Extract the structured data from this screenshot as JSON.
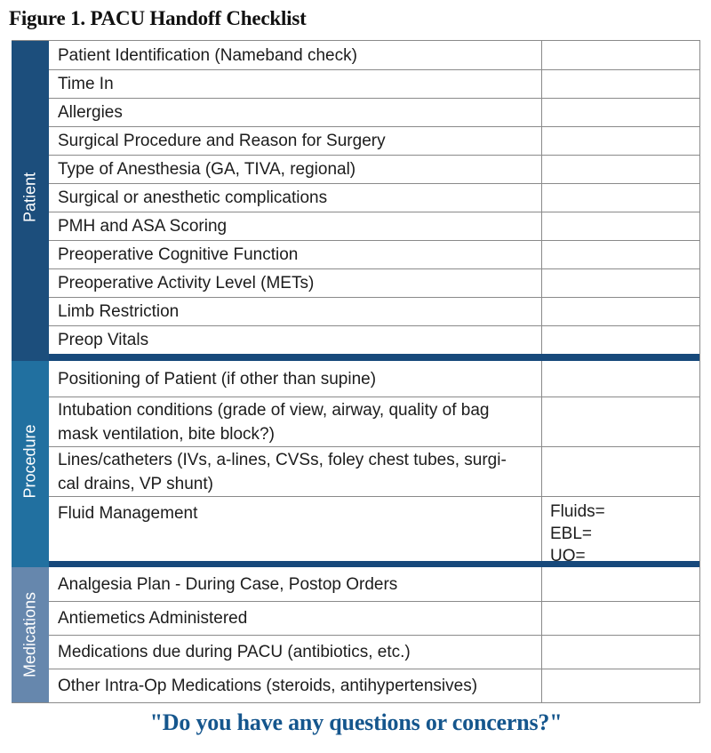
{
  "figure": {
    "title": "Figure 1. PACU Handoff Checklist",
    "footer_quote": "\"Do you have any questions or concerns?\""
  },
  "colors": {
    "patient_sidebar": "#1c4e7c",
    "procedure_sidebar": "#2170a0",
    "medications_sidebar": "#6687ad",
    "section_divider": "#17497b",
    "grid_line": "#8a8a8a",
    "body_text": "#1c1c1c",
    "footer_text": "#15568d"
  },
  "table": {
    "sections": [
      {
        "label": "Patient",
        "rows": [
          {
            "item": "Patient Identification (Nameband check)",
            "value": ""
          },
          {
            "item": "Time In",
            "value": ""
          },
          {
            "item": "Allergies",
            "value": ""
          },
          {
            "item": "Surgical Procedure and Reason for Surgery",
            "value": ""
          },
          {
            "item": "Type of Anesthesia (GA, TIVA, regional)",
            "value": ""
          },
          {
            "item": "Surgical or anesthetic complications",
            "value": ""
          },
          {
            "item": "PMH and ASA Scoring",
            "value": ""
          },
          {
            "item": "Preoperative Cognitive Function",
            "value": ""
          },
          {
            "item": "Preoperative Activity Level (METs)",
            "value": ""
          },
          {
            "item": "Limb Restriction",
            "value": ""
          },
          {
            "item": "Preop Vitals",
            "value": ""
          }
        ]
      },
      {
        "label": "Procedure",
        "rows": [
          {
            "item": "Positioning of Patient (if other than supine)",
            "value": ""
          },
          {
            "item": "Intubation conditions (grade of view, airway, quality of bag\nmask ventilation, bite block?)",
            "value": ""
          },
          {
            "item": "Lines/catheters (IVs, a-lines, CVSs, foley chest tubes, surgi-\ncal drains, VP shunt)",
            "value": ""
          },
          {
            "item": "Fluid Management",
            "value": "Fluids=\nEBL=\nUO="
          }
        ]
      },
      {
        "label": "Medications",
        "rows": [
          {
            "item": "Analgesia Plan - During Case, Postop Orders",
            "value": ""
          },
          {
            "item": "Antiemetics Administered",
            "value": ""
          },
          {
            "item": "Medications due during PACU (antibiotics, etc.)",
            "value": ""
          },
          {
            "item": "Other Intra-Op Medications (steroids, antihypertensives)",
            "value": ""
          }
        ]
      }
    ]
  }
}
